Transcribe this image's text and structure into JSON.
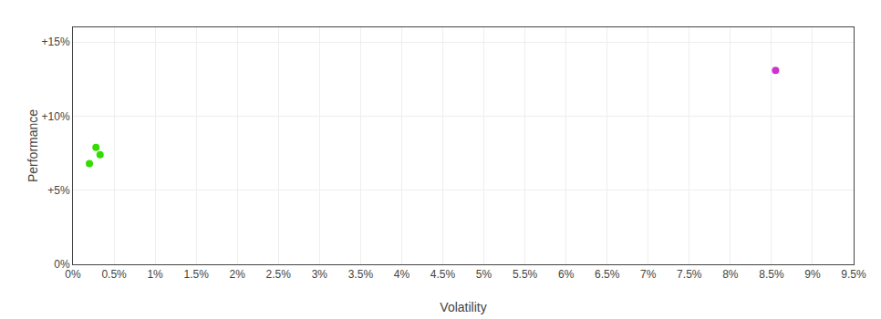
{
  "chart_data": {
    "type": "scatter",
    "xlabel": "Volatility",
    "ylabel": "Performance",
    "xlim": [
      0,
      0.095
    ],
    "ylim": [
      0,
      0.16
    ],
    "xticks": [
      {
        "value": 0.0,
        "label": "0%"
      },
      {
        "value": 0.005,
        "label": "0.5%"
      },
      {
        "value": 0.01,
        "label": "1%"
      },
      {
        "value": 0.015,
        "label": "1.5%"
      },
      {
        "value": 0.02,
        "label": "2%"
      },
      {
        "value": 0.025,
        "label": "2.5%"
      },
      {
        "value": 0.03,
        "label": "3%"
      },
      {
        "value": 0.035,
        "label": "3.5%"
      },
      {
        "value": 0.04,
        "label": "4%"
      },
      {
        "value": 0.045,
        "label": "4.5%"
      },
      {
        "value": 0.05,
        "label": "5%"
      },
      {
        "value": 0.055,
        "label": "5.5%"
      },
      {
        "value": 0.06,
        "label": "6%"
      },
      {
        "value": 0.065,
        "label": "6.5%"
      },
      {
        "value": 0.07,
        "label": "7%"
      },
      {
        "value": 0.075,
        "label": "7.5%"
      },
      {
        "value": 0.08,
        "label": "8%"
      },
      {
        "value": 0.085,
        "label": "8.5%"
      },
      {
        "value": 0.09,
        "label": "9%"
      },
      {
        "value": 0.095,
        "label": "9.5%"
      }
    ],
    "yticks": [
      {
        "value": 0.0,
        "label": "0%"
      },
      {
        "value": 0.05,
        "label": "+5%"
      },
      {
        "value": 0.1,
        "label": "+10%"
      },
      {
        "value": 0.15,
        "label": "+15%"
      }
    ],
    "grid": true,
    "series": [
      {
        "color": "#33dd00",
        "x": [
          0.0028,
          0.0033,
          0.002
        ],
        "values": [
          0.079,
          0.074,
          0.068
        ]
      },
      {
        "color": "#cc33cc",
        "x": [
          0.0855
        ],
        "values": [
          0.131
        ]
      }
    ]
  }
}
